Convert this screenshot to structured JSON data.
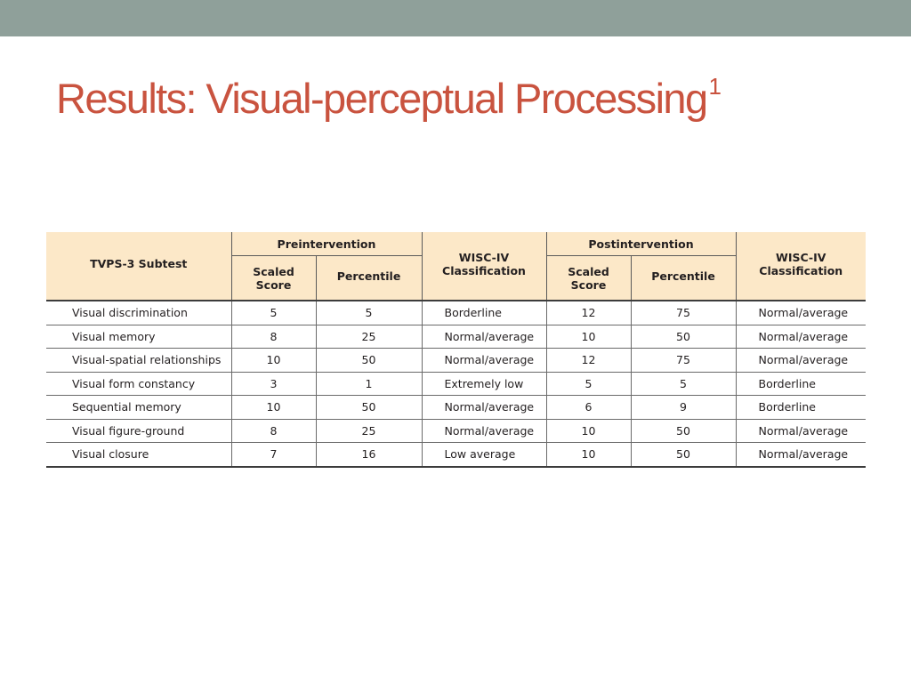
{
  "slide": {
    "title": "Results: Visual-perceptual Processing",
    "title_superscript": "1"
  },
  "table": {
    "header": {
      "subtest": "TVPS-3 Subtest",
      "pre_group": "Preintervention",
      "post_group": "Postintervention",
      "scaled_score_line1": "Scaled",
      "scaled_score_line2": "Score",
      "percentile": "Percentile",
      "wisc_line1": "WISC-IV",
      "wisc_line2": "Classification"
    },
    "rows": [
      {
        "subtest": "Visual discrimination",
        "pre_scaled": "5",
        "pre_percentile": "5",
        "pre_class": "Borderline",
        "post_scaled": "12",
        "post_percentile": "75",
        "post_class": "Normal/average"
      },
      {
        "subtest": "Visual memory",
        "pre_scaled": "8",
        "pre_percentile": "25",
        "pre_class": "Normal/average",
        "post_scaled": "10",
        "post_percentile": "50",
        "post_class": "Normal/average"
      },
      {
        "subtest": "Visual-spatial relationships",
        "pre_scaled": "10",
        "pre_percentile": "50",
        "pre_class": "Normal/average",
        "post_scaled": "12",
        "post_percentile": "75",
        "post_class": "Normal/average"
      },
      {
        "subtest": "Visual form constancy",
        "pre_scaled": "3",
        "pre_percentile": "1",
        "pre_class": "Extremely low",
        "post_scaled": "5",
        "post_percentile": "5",
        "post_class": "Borderline"
      },
      {
        "subtest": "Sequential memory",
        "pre_scaled": "10",
        "pre_percentile": "50",
        "pre_class": "Normal/average",
        "post_scaled": "6",
        "post_percentile": "9",
        "post_class": "Borderline"
      },
      {
        "subtest": "Visual figure-ground",
        "pre_scaled": "8",
        "pre_percentile": "25",
        "pre_class": "Normal/average",
        "post_scaled": "10",
        "post_percentile": "50",
        "post_class": "Normal/average"
      },
      {
        "subtest": "Visual closure",
        "pre_scaled": "7",
        "pre_percentile": "16",
        "pre_class": "Low average",
        "post_scaled": "10",
        "post_percentile": "50",
        "post_class": "Normal/average"
      }
    ]
  },
  "colors": {
    "top_bar": "#8fa09a",
    "title": "#c9533f",
    "header_fill": "#fce8c8"
  }
}
